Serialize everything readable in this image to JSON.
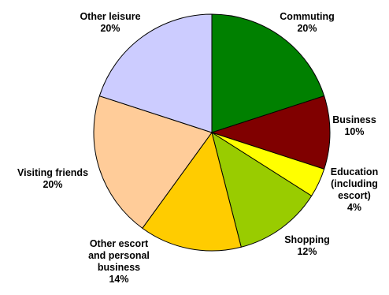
{
  "chart_data": {
    "type": "pie",
    "title": "",
    "start": "12 o'clock",
    "direction": "clockwise",
    "slices": [
      {
        "label": "Commuting",
        "value": 20,
        "value_label": "20%",
        "color": "#008000"
      },
      {
        "label": "Business",
        "value": 10,
        "value_label": "10%",
        "color": "#800000"
      },
      {
        "label": "Education (including escort)",
        "value": 4,
        "value_label": "4%",
        "color": "#ffff00"
      },
      {
        "label": "Shopping",
        "value": 12,
        "value_label": "12%",
        "color": "#99cc00"
      },
      {
        "label": "Other escort and personal business",
        "value": 14,
        "value_label": "14%",
        "color": "#ffcc00"
      },
      {
        "label": "Visiting friends",
        "value": 20,
        "value_label": "20%",
        "color": "#ffcc99"
      },
      {
        "label": "Other leisure",
        "value": 20,
        "value_label": "20%",
        "color": "#ccccff"
      }
    ],
    "labels": [
      {
        "lines": [
          "Commuting"
        ],
        "value_label": "20%"
      },
      {
        "lines": [
          "Business"
        ],
        "value_label": "10%"
      },
      {
        "lines": [
          "Education",
          "(including",
          "escort)"
        ],
        "value_label": "4%"
      },
      {
        "lines": [
          "Shopping"
        ],
        "value_label": "12%"
      },
      {
        "lines": [
          "Other escort",
          "and personal",
          "business"
        ],
        "value_label": "14%"
      },
      {
        "lines": [
          "Visiting friends"
        ],
        "value_label": "20%"
      },
      {
        "lines": [
          "Other leisure"
        ],
        "value_label": "20%"
      }
    ],
    "edge_color": "#000000"
  }
}
